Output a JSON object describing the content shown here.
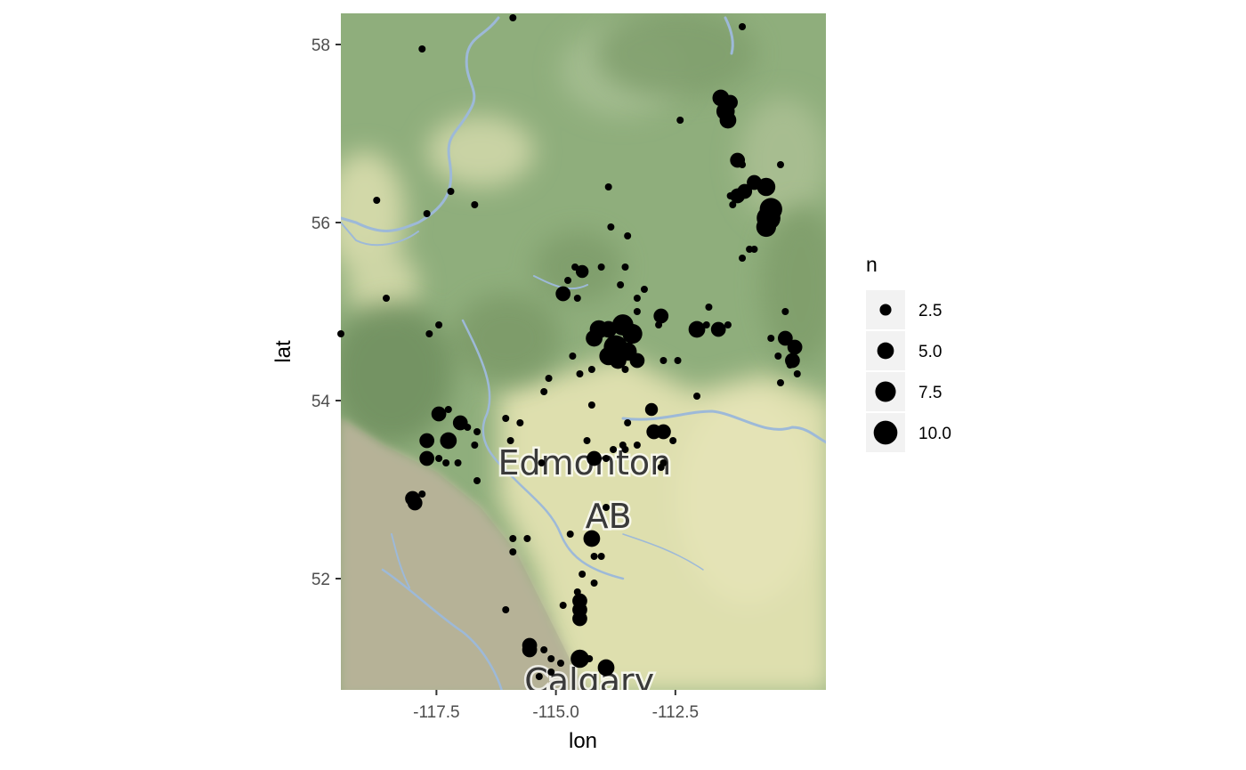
{
  "chart_data": {
    "type": "scatter",
    "title": "",
    "xlabel": "lon",
    "ylabel": "lat",
    "xlim": [
      -119.5,
      -109.35
    ],
    "ylim": [
      50.75,
      58.35
    ],
    "x_ticks": [
      -117.5,
      -115.0,
      -112.5
    ],
    "x_tick_labels": [
      "-117.5",
      "-115.0",
      "-112.5"
    ],
    "y_ticks": [
      52,
      54,
      56,
      58
    ],
    "y_tick_labels": [
      "52",
      "54",
      "56",
      "58"
    ],
    "grid": false,
    "size_scale": {
      "min_n": 1,
      "max_n": 11,
      "min_radius": 4,
      "max_radius": 14
    },
    "legend": {
      "title": "n",
      "placement": "right",
      "entries": [
        {
          "label": "2.5",
          "value": 2.5
        },
        {
          "label": "5.0",
          "value": 5.0
        },
        {
          "label": "7.5",
          "value": 7.5
        },
        {
          "label": "10.0",
          "value": 10.0
        }
      ]
    },
    "basemap_labels": [
      {
        "text": "Edmonton",
        "lon": -114.4,
        "lat": 53.17
      },
      {
        "text": "AB",
        "lon": -113.9,
        "lat": 52.57
      },
      {
        "text": "Calgary",
        "lon": -114.3,
        "lat": 50.72
      }
    ],
    "colors": {
      "points": "#000000",
      "legend_key_bg": "#f2f2f2",
      "map_green": "#9bb585",
      "map_dark_green": "#7d9c6b",
      "map_pale": "#dfe1b2",
      "map_mountain": "#b9b59b",
      "river": "#9db9d8"
    },
    "points": [
      [
        -115.9,
        58.3,
        1
      ],
      [
        -117.8,
        57.95,
        1
      ],
      [
        -111.1,
        58.2,
        1
      ],
      [
        -111.55,
        57.4,
        5
      ],
      [
        -111.35,
        57.35,
        4
      ],
      [
        -111.45,
        57.25,
        6
      ],
      [
        -111.4,
        57.15,
        5
      ],
      [
        -112.4,
        57.15,
        1
      ],
      [
        -111.2,
        56.7,
        4
      ],
      [
        -111.1,
        56.65,
        1
      ],
      [
        -110.3,
        56.65,
        1
      ],
      [
        -110.85,
        56.45,
        4
      ],
      [
        -110.6,
        56.4,
        6
      ],
      [
        -111.2,
        56.3,
        4
      ],
      [
        -111.05,
        56.35,
        4
      ],
      [
        -111.35,
        56.3,
        1
      ],
      [
        -111.3,
        56.2,
        1
      ],
      [
        -110.5,
        56.15,
        9
      ],
      [
        -110.55,
        56.05,
        10
      ],
      [
        -110.6,
        55.95,
        7
      ],
      [
        -111.1,
        55.6,
        1
      ],
      [
        -110.95,
        55.7,
        1
      ],
      [
        -110.85,
        55.7,
        1
      ],
      [
        -113.9,
        56.4,
        1
      ],
      [
        -118.75,
        56.25,
        1
      ],
      [
        -117.7,
        56.1,
        1
      ],
      [
        -117.2,
        56.35,
        1
      ],
      [
        -116.7,
        56.2,
        1
      ],
      [
        -113.85,
        55.95,
        1
      ],
      [
        -113.5,
        55.85,
        1
      ],
      [
        -118.55,
        55.15,
        1
      ],
      [
        -114.45,
        55.45,
        3
      ],
      [
        -114.6,
        55.5,
        1
      ],
      [
        -114.75,
        55.35,
        1
      ],
      [
        -114.05,
        55.5,
        1
      ],
      [
        -113.55,
        55.5,
        1
      ],
      [
        -113.65,
        55.3,
        1
      ],
      [
        -114.85,
        55.2,
        4
      ],
      [
        -114.55,
        55.15,
        1
      ],
      [
        -113.3,
        55.15,
        1
      ],
      [
        -113.15,
        55.25,
        1
      ],
      [
        -114.1,
        54.8,
        6
      ],
      [
        -113.9,
        54.8,
        5
      ],
      [
        -113.6,
        54.85,
        8
      ],
      [
        -113.4,
        54.75,
        7
      ],
      [
        -113.75,
        54.6,
        10
      ],
      [
        -113.9,
        54.5,
        6
      ],
      [
        -113.5,
        54.55,
        6
      ],
      [
        -113.7,
        54.45,
        5
      ],
      [
        -113.3,
        54.45,
        4
      ],
      [
        -113.55,
        54.35,
        1
      ],
      [
        -113.3,
        55.0,
        1
      ],
      [
        -112.8,
        54.95,
        4
      ],
      [
        -112.85,
        54.85,
        1
      ],
      [
        -112.05,
        54.8,
        5
      ],
      [
        -111.85,
        54.85,
        1
      ],
      [
        -111.6,
        54.8,
        4
      ],
      [
        -111.8,
        55.05,
        1
      ],
      [
        -111.4,
        54.85,
        1
      ],
      [
        -114.2,
        54.7,
        5
      ],
      [
        -114.65,
        54.5,
        1
      ],
      [
        -114.5,
        54.3,
        1
      ],
      [
        -114.25,
        54.35,
        1
      ],
      [
        -115.15,
        54.25,
        1
      ],
      [
        -115.25,
        54.1,
        1
      ],
      [
        -112.75,
        54.45,
        1
      ],
      [
        -112.45,
        54.45,
        1
      ],
      [
        -112.05,
        54.05,
        1
      ],
      [
        -110.5,
        54.7,
        1
      ],
      [
        -110.2,
        54.7,
        4
      ],
      [
        -110.0,
        54.6,
        4
      ],
      [
        -110.05,
        54.45,
        4
      ],
      [
        -110.35,
        54.5,
        1
      ],
      [
        -110.1,
        54.4,
        1
      ],
      [
        -110.3,
        54.2,
        1
      ],
      [
        -109.95,
        54.3,
        1
      ],
      [
        -110.2,
        55.0,
        1
      ],
      [
        -114.25,
        53.95,
        1
      ],
      [
        -113.0,
        53.9,
        3
      ],
      [
        -112.95,
        53.65,
        4
      ],
      [
        -112.75,
        53.65,
        4
      ],
      [
        -112.55,
        53.55,
        1
      ],
      [
        -112.75,
        53.3,
        1
      ],
      [
        -112.8,
        53.25,
        1
      ],
      [
        -113.5,
        53.75,
        1
      ],
      [
        -113.6,
        53.5,
        1
      ],
      [
        -113.55,
        53.45,
        1
      ],
      [
        -113.3,
        53.5,
        1
      ],
      [
        -113.8,
        53.45,
        1
      ],
      [
        -113.95,
        53.35,
        1
      ],
      [
        -114.35,
        53.55,
        1
      ],
      [
        -117.45,
        53.85,
        4
      ],
      [
        -117.25,
        53.9,
        1
      ],
      [
        -117.0,
        53.75,
        4
      ],
      [
        -116.85,
        53.7,
        1
      ],
      [
        -117.25,
        53.55,
        5
      ],
      [
        -116.65,
        53.65,
        1
      ],
      [
        -117.7,
        53.55,
        4
      ],
      [
        -117.3,
        53.3,
        1
      ],
      [
        -117.7,
        53.35,
        4
      ],
      [
        -117.45,
        53.35,
        1
      ],
      [
        -117.05,
        53.3,
        1
      ],
      [
        -116.7,
        53.5,
        1
      ],
      [
        -116.05,
        53.8,
        1
      ],
      [
        -115.75,
        53.75,
        1
      ],
      [
        -115.95,
        53.55,
        1
      ],
      [
        -115.3,
        53.3,
        1
      ],
      [
        -114.2,
        53.35,
        4
      ],
      [
        -116.65,
        53.1,
        1
      ],
      [
        -118.0,
        52.9,
        4
      ],
      [
        -117.95,
        52.85,
        4
      ],
      [
        -117.8,
        52.95,
        1
      ],
      [
        -114.25,
        52.45,
        5
      ],
      [
        -113.95,
        52.8,
        1
      ],
      [
        -114.7,
        52.5,
        1
      ],
      [
        -114.2,
        52.25,
        1
      ],
      [
        -114.05,
        52.25,
        1
      ],
      [
        -115.9,
        52.45,
        1
      ],
      [
        -115.6,
        52.45,
        1
      ],
      [
        -115.9,
        52.3,
        1
      ],
      [
        -114.2,
        51.95,
        1
      ],
      [
        -114.45,
        52.05,
        1
      ],
      [
        -114.55,
        51.85,
        1
      ],
      [
        -114.85,
        51.7,
        1
      ],
      [
        -114.5,
        51.75,
        4
      ],
      [
        -114.5,
        51.65,
        4
      ],
      [
        -114.5,
        51.55,
        4
      ],
      [
        -116.05,
        51.65,
        1
      ],
      [
        -115.55,
        51.25,
        4
      ],
      [
        -115.55,
        51.2,
        4
      ],
      [
        -115.25,
        51.2,
        1
      ],
      [
        -114.5,
        51.1,
        6
      ],
      [
        -114.3,
        51.1,
        1
      ],
      [
        -113.95,
        51.0,
        5
      ],
      [
        -115.1,
        51.1,
        1
      ],
      [
        -114.9,
        51.05,
        1
      ],
      [
        -115.1,
        50.95,
        1
      ],
      [
        -115.35,
        50.9,
        1
      ],
      [
        -119.5,
        54.75,
        1
      ],
      [
        -117.65,
        54.75,
        1
      ],
      [
        -117.45,
        54.85,
        1
      ]
    ]
  }
}
